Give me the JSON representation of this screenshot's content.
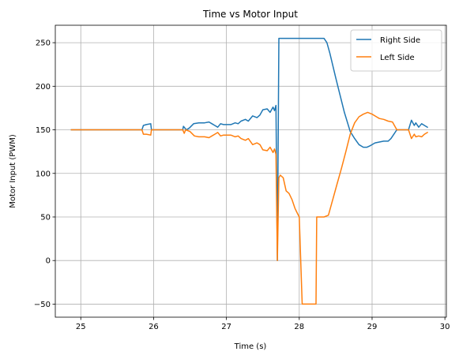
{
  "chart_data": {
    "type": "line",
    "title": "Time vs Motor Input",
    "xlabel": "Time (s)",
    "ylabel": "Motor Input (PWM)",
    "xlim": [
      24.65,
      30.02
    ],
    "ylim": [
      -65,
      270
    ],
    "xticks": [
      25,
      26,
      27,
      28,
      29,
      30
    ],
    "xtick_labels": [
      "25",
      "26",
      "27",
      "28",
      "29",
      "30"
    ],
    "yticks": [
      -50,
      0,
      50,
      100,
      150,
      200,
      250
    ],
    "ytick_labels": [
      "−50",
      "0",
      "50",
      "100",
      "150",
      "200",
      "250"
    ],
    "grid": true,
    "legend_position": "top-right",
    "series": [
      {
        "name": "Right Side",
        "color": "#1f77b4",
        "x": [
          24.87,
          25.84,
          25.86,
          25.9,
          25.96,
          25.97,
          26.4,
          26.41,
          26.45,
          26.49,
          26.55,
          26.62,
          26.7,
          26.76,
          26.8,
          26.84,
          26.88,
          26.92,
          26.96,
          27.0,
          27.06,
          27.12,
          27.16,
          27.2,
          27.26,
          27.3,
          27.36,
          27.42,
          27.46,
          27.5,
          27.56,
          27.6,
          27.64,
          27.66,
          27.68,
          27.7,
          27.72,
          28.34,
          28.38,
          28.42,
          28.46,
          28.5,
          28.56,
          28.62,
          28.7,
          28.76,
          28.82,
          28.88,
          28.93,
          28.98,
          29.04,
          29.1,
          29.16,
          29.22,
          29.26,
          29.3,
          29.34,
          29.5,
          29.54,
          29.58,
          29.6,
          29.64,
          29.68,
          29.72,
          29.76
        ],
        "y": [
          150,
          150,
          155,
          156,
          157,
          150,
          150,
          154,
          150,
          152,
          157,
          158,
          158,
          159,
          157,
          155,
          153,
          157,
          156,
          156,
          156,
          158,
          157,
          160,
          162,
          160,
          166,
          164,
          167,
          173,
          174,
          170,
          176,
          172,
          178,
          0,
          255,
          255,
          250,
          238,
          224,
          210,
          190,
          170,
          148,
          140,
          133,
          130,
          130,
          132,
          135,
          136,
          137,
          137,
          140,
          145,
          150,
          150,
          161,
          155,
          158,
          153,
          157,
          155,
          153
        ]
      },
      {
        "name": "Left Side",
        "color": "#ff7f0e",
        "x": [
          24.87,
          25.84,
          25.86,
          25.9,
          25.96,
          25.97,
          26.4,
          26.42,
          26.44,
          26.5,
          26.56,
          26.62,
          26.7,
          26.76,
          26.8,
          26.84,
          26.88,
          26.92,
          26.96,
          27.0,
          27.06,
          27.12,
          27.16,
          27.2,
          27.26,
          27.3,
          27.36,
          27.42,
          27.46,
          27.5,
          27.56,
          27.6,
          27.64,
          27.66,
          27.68,
          27.7,
          27.72,
          27.74,
          27.78,
          27.82,
          27.86,
          27.9,
          27.94,
          27.97,
          28.0,
          28.04,
          28.08,
          28.11,
          28.12,
          28.15,
          28.2,
          28.23,
          28.24,
          28.3,
          28.34,
          28.4,
          28.46,
          28.52,
          28.58,
          28.64,
          28.7,
          28.76,
          28.82,
          28.88,
          28.94,
          29.0,
          29.06,
          29.1,
          29.16,
          29.22,
          29.28,
          29.34,
          29.5,
          29.54,
          29.58,
          29.6,
          29.64,
          29.68,
          29.72,
          29.76
        ],
        "y": [
          150,
          150,
          145,
          145,
          144,
          150,
          150,
          146,
          150,
          148,
          143,
          142,
          142,
          141,
          143,
          145,
          147,
          143,
          144,
          144,
          144,
          142,
          143,
          140,
          138,
          140,
          133,
          135,
          133,
          127,
          126,
          130,
          124,
          128,
          122,
          0,
          95,
          98,
          95,
          80,
          77,
          70,
          60,
          55,
          50,
          -50,
          -50,
          -50,
          -50,
          -50,
          -50,
          -50,
          50,
          50,
          50,
          52,
          70,
          88,
          106,
          125,
          145,
          158,
          165,
          168,
          170,
          168,
          165,
          163,
          162,
          160,
          159,
          150,
          150,
          140,
          145,
          142,
          143,
          142,
          145,
          147
        ]
      }
    ]
  }
}
